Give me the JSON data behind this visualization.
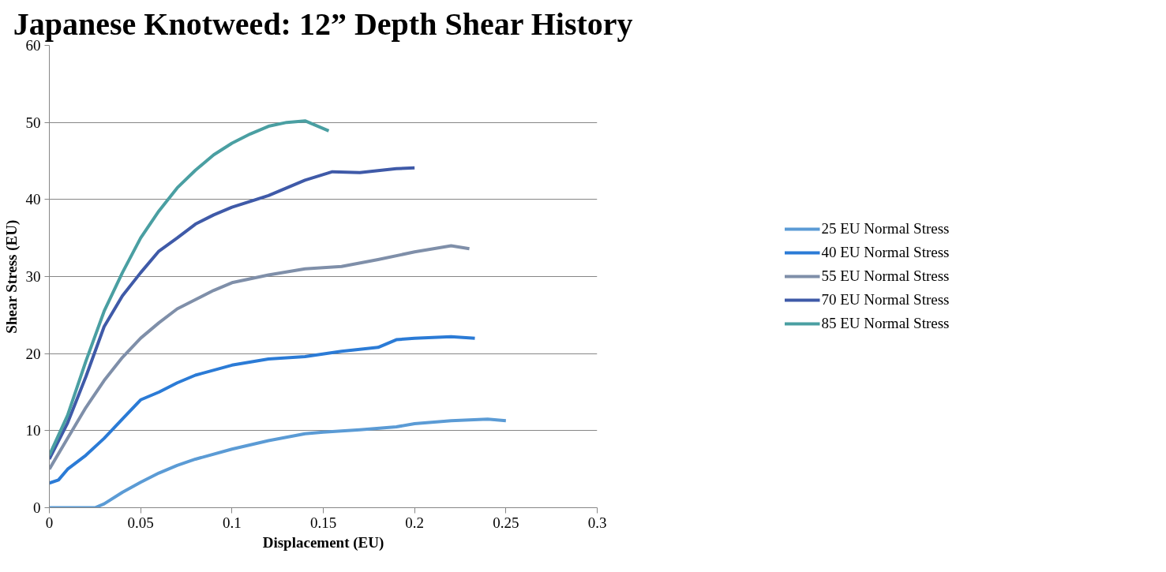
{
  "chart_data": {
    "type": "line",
    "title": "Japanese Knotweed: 12” Depth Shear History",
    "xlabel": "Displacement (EU)",
    "ylabel": "Shear Stress (EU)",
    "xlim": [
      0,
      0.3
    ],
    "xticks": [
      0,
      0.05,
      0.1,
      0.15,
      0.2,
      0.25,
      0.3
    ],
    "ylim": [
      0,
      60
    ],
    "yticks": [
      0,
      10,
      20,
      30,
      40,
      50,
      60
    ],
    "grid": "y",
    "legend": "right",
    "marker": "none",
    "line_style": "solid",
    "series": [
      {
        "name": "25 EU Normal Stress",
        "color": "#5b9bd5",
        "x": [
          0,
          0.012,
          0.025,
          0.03,
          0.04,
          0.05,
          0.06,
          0.07,
          0.08,
          0.1,
          0.12,
          0.14,
          0.15,
          0.17,
          0.19,
          0.2,
          0.22,
          0.24,
          0.25
        ],
        "values": [
          0,
          0,
          0,
          0.5,
          2,
          3.3,
          4.5,
          5.5,
          6.3,
          7.6,
          8.7,
          9.6,
          9.8,
          10.1,
          10.5,
          10.9,
          11.3,
          11.5,
          11.3
        ]
      },
      {
        "name": "40 EU Normal Stress",
        "color": "#2b7bd6",
        "x": [
          0,
          0.005,
          0.01,
          0.02,
          0.03,
          0.04,
          0.05,
          0.06,
          0.07,
          0.08,
          0.1,
          0.12,
          0.14,
          0.16,
          0.18,
          0.19,
          0.2,
          0.22,
          0.233
        ],
        "values": [
          3.2,
          3.6,
          5,
          6.8,
          9,
          11.5,
          14,
          15,
          16.2,
          17.2,
          18.5,
          19.3,
          19.6,
          20.3,
          20.8,
          21.8,
          22,
          22.2,
          22
        ]
      },
      {
        "name": "55 EU Normal Stress",
        "color": "#7f8fa9",
        "x": [
          0,
          0.01,
          0.02,
          0.03,
          0.04,
          0.05,
          0.06,
          0.07,
          0.08,
          0.09,
          0.1,
          0.12,
          0.14,
          0.16,
          0.18,
          0.2,
          0.22,
          0.23
        ],
        "values": [
          5,
          9,
          13,
          16.5,
          19.5,
          22,
          24,
          25.8,
          27,
          28.2,
          29.2,
          30.2,
          31,
          31.3,
          32.2,
          33.2,
          34,
          33.6
        ]
      },
      {
        "name": "70 EU Normal Stress",
        "color": "#3f5aa8",
        "x": [
          0,
          0.01,
          0.02,
          0.03,
          0.04,
          0.05,
          0.06,
          0.07,
          0.08,
          0.09,
          0.1,
          0.12,
          0.14,
          0.155,
          0.17,
          0.19,
          0.2
        ],
        "values": [
          6.3,
          11,
          17,
          23.5,
          27.5,
          30.5,
          33.3,
          35,
          36.8,
          38,
          39,
          40.5,
          42.5,
          43.6,
          43.5,
          44,
          44.1
        ]
      },
      {
        "name": "85 EU Normal Stress",
        "color": "#4a9fa2",
        "x": [
          0,
          0.01,
          0.02,
          0.03,
          0.04,
          0.05,
          0.06,
          0.07,
          0.08,
          0.09,
          0.1,
          0.11,
          0.12,
          0.13,
          0.14,
          0.153
        ],
        "values": [
          6.8,
          12,
          19,
          25.5,
          30.5,
          35,
          38.5,
          41.5,
          43.8,
          45.8,
          47.3,
          48.5,
          49.5,
          50,
          50.2,
          48.9
        ]
      }
    ]
  }
}
